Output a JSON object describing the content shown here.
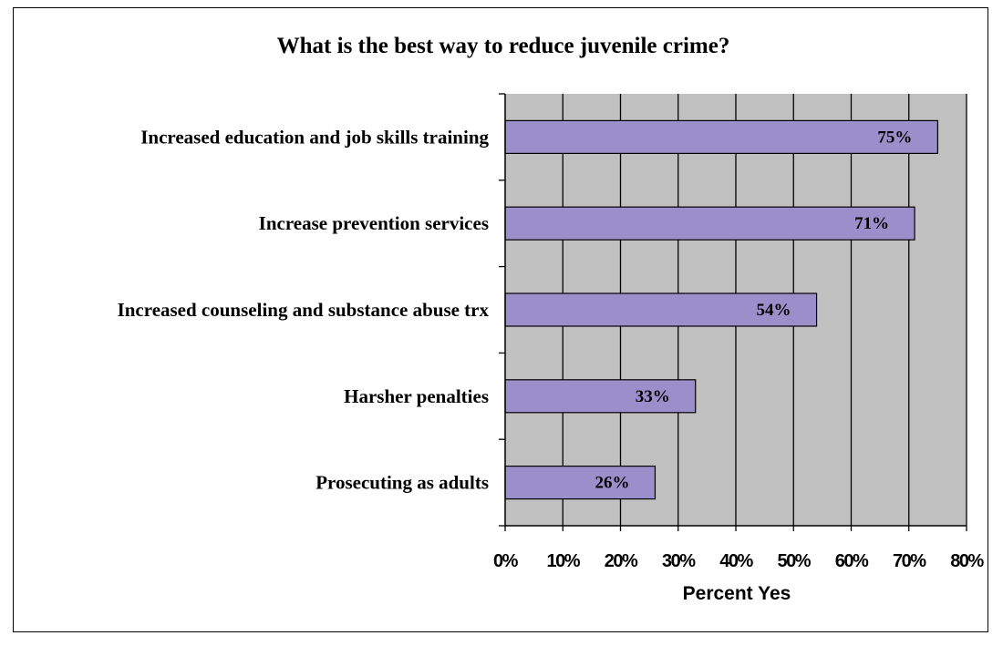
{
  "chart_data": {
    "type": "bar",
    "orientation": "horizontal",
    "title": "What is the best way to reduce juvenile crime?",
    "xlabel": "Percent Yes",
    "ylabel": "",
    "categories": [
      "Increased education and job skills training",
      "Increase prevention services",
      "Increased counseling and substance abuse trx",
      "Harsher penalties",
      "Prosecuting as adults"
    ],
    "values": [
      75,
      71,
      54,
      33,
      26
    ],
    "data_labels": [
      "75%",
      "71%",
      "54%",
      "33%",
      "26%"
    ],
    "xlim": [
      0,
      80
    ],
    "ticks": [
      "0%",
      "10%",
      "20%",
      "30%",
      "40%",
      "50%",
      "60%",
      "70%",
      "80%"
    ],
    "grid": "vertical",
    "legend": "none",
    "colors": {
      "bar": "#9B8FCB",
      "plot_background": "#C0C0C0",
      "gridline": "#000000"
    }
  }
}
